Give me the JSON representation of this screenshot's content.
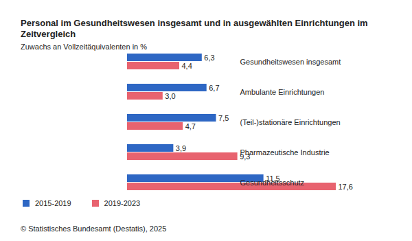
{
  "chart_data": {
    "type": "bar",
    "orientation": "horizontal",
    "title": "Personal im Gesundheitswesen insgesamt und in ausgewählten Einrichtungen im Zeitvergleich",
    "subtitle": "Zuwachs an Vollzeitäquivalenten in %",
    "categories": [
      "Gesundheitswesen insgesamt",
      "Ambulante Einrichtungen",
      "(Teil-)stationäre Einrichtungen",
      "Pharmazeutische Industrie",
      "Gesundheitsschutz"
    ],
    "series": [
      {
        "name": "2015-2019",
        "color": "#2e67c4",
        "values": [
          6.3,
          6.7,
          7.5,
          3.9,
          11.5
        ],
        "value_labels": [
          "6,3",
          "6,7",
          "7,5",
          "3,9",
          "11,5"
        ]
      },
      {
        "name": "2019-2023",
        "color": "#e8636f",
        "values": [
          4.4,
          3.0,
          4.7,
          9.3,
          17.6
        ],
        "value_labels": [
          "4,4",
          "3,0",
          "4,7",
          "9,3",
          "17,6"
        ]
      }
    ],
    "xlim": [
      0,
      17.6
    ],
    "data_labels": true,
    "tick_labels": "y",
    "legend": "bottom-left",
    "source": "© Statistisches Bundesamt (Destatis), 2025"
  }
}
